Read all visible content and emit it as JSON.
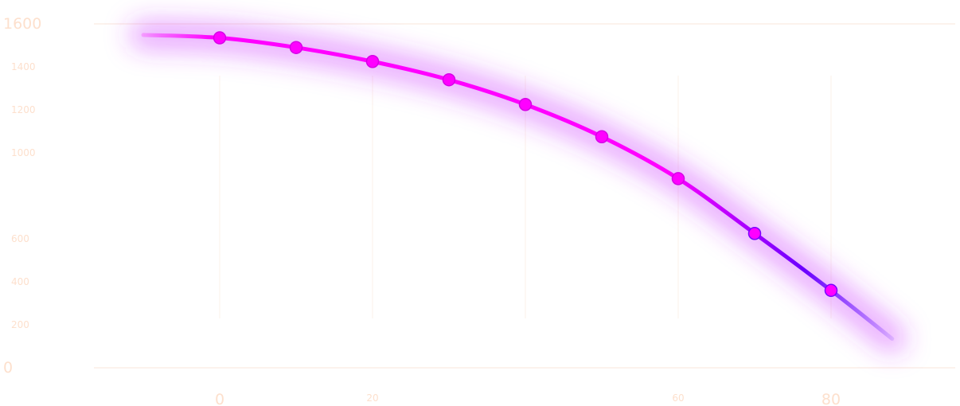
{
  "chart_data": {
    "type": "line",
    "title": "",
    "xlabel": "",
    "ylabel": "",
    "x": [
      0,
      10,
      20,
      30,
      40,
      50,
      60,
      70,
      80
    ],
    "series": [
      {
        "values": [
          1535,
          1490,
          1425,
          1340,
          1225,
          1075,
          880,
          625,
          360
        ]
      }
    ],
    "xlim": [
      -10,
      88
    ],
    "ylim": [
      0,
      1660
    ],
    "xticks": [
      {
        "label": "0",
        "value": 0,
        "size": "large"
      },
      {
        "label": "20",
        "value": 20,
        "size": "small"
      },
      {
        "label": "60",
        "value": 60,
        "size": "small"
      },
      {
        "label": "80",
        "value": 80,
        "size": "large"
      }
    ],
    "yticks": [
      {
        "label": "0",
        "value": 0,
        "size": "large"
      },
      {
        "label": "200",
        "value": 200,
        "size": "small"
      },
      {
        "label": "400",
        "value": 400,
        "size": "small"
      },
      {
        "label": "600",
        "value": 600,
        "size": "small"
      },
      {
        "label": "1000",
        "value": 1000,
        "size": "small"
      },
      {
        "label": "1200",
        "value": 1200,
        "size": "small"
      },
      {
        "label": "1400",
        "value": 1400,
        "size": "small"
      },
      {
        "label": "1600",
        "value": 1600,
        "size": "large"
      }
    ],
    "grid": true,
    "legend": "none",
    "colors": {
      "line_start": "#ff00ff",
      "line_end": "#4b00ff",
      "marker": "#ff00ff",
      "glow": "#cc33ff",
      "tick_text": "#fde0cd",
      "gridline": "#f8e4d8"
    }
  }
}
